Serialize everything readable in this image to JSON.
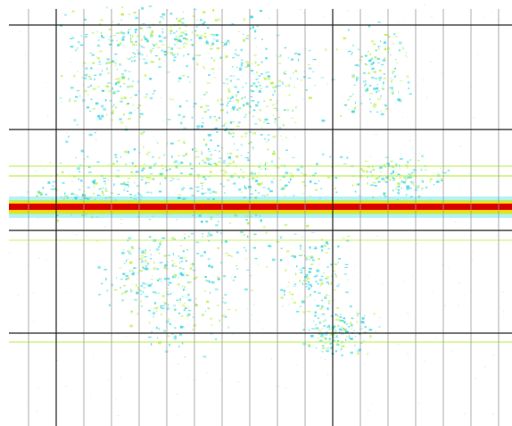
{
  "chart_data": {
    "type": "density",
    "grid": true,
    "colormap": [
      "#2fd6e0",
      "#b8f040",
      "#ffd400",
      "#d80000"
    ]
  }
}
